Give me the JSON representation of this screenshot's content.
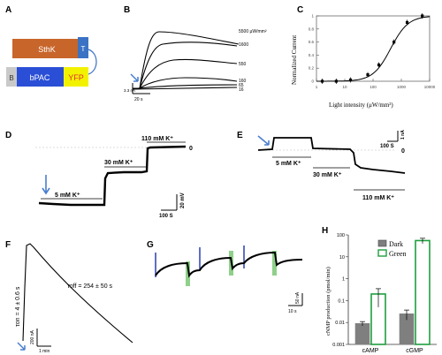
{
  "panels": {
    "A": {
      "label": "A",
      "construct": {
        "sthk": "SthK",
        "t": "T",
        "cap": "B",
        "bpac": "bPAC",
        "yfp": "YFP"
      },
      "colors": {
        "sthk": "#c8652a",
        "t": "#3b73c4",
        "cap": "#c9c9c9",
        "bpac": "#2a4fd6",
        "yfp": "#f2f200"
      }
    },
    "B": {
      "label": "B",
      "trace_labels": [
        "5500 μW/mm²",
        "1600",
        "550",
        "160",
        "65",
        "16"
      ],
      "scale_y": "3.3 nA",
      "scale_x": "20 s"
    },
    "C": {
      "label": "C",
      "ylabel": "Normalized Current",
      "xlabel": "Light intensity (μW/mm²)",
      "xticks": [
        "1",
        "10",
        "100",
        "1000",
        "10000"
      ],
      "yticks": [
        "0",
        "0.2",
        "0.4",
        "0.6",
        "0.8",
        "1"
      ]
    },
    "D": {
      "label": "D",
      "annotations": [
        "5 mM K⁺",
        "30 mM K⁺",
        "110 mM K⁺"
      ],
      "zero": "0",
      "scale_y": "20 mV",
      "scale_x": "100 S"
    },
    "E": {
      "label": "E",
      "annotations": [
        "5 mM K⁺",
        "30 mM K⁺",
        "110 mM K⁺"
      ],
      "zero": "0",
      "scale_y": "1 nA",
      "scale_x": "100 S"
    },
    "F": {
      "label": "F",
      "tau_on": "τon = 4 ± 0.6 s",
      "tau_off": "τoff = 254 ± 50 s",
      "scale_y": "200 nA",
      "scale_x": "1 min"
    },
    "G": {
      "label": "G",
      "scale_y": "50 nA",
      "scale_x": "10 s"
    },
    "H": {
      "label": "H",
      "ylabel": "cNMP production (pmol/min)",
      "legend": [
        "Dark",
        "Green"
      ],
      "categories": [
        "cAMP",
        "cGMP"
      ],
      "yticks": [
        "0.001",
        "0.01",
        "0.1",
        "1",
        "10",
        "100"
      ]
    }
  },
  "chart_data": [
    {
      "type": "scatter",
      "panel": "C",
      "xlabel": "Light intensity (μW/mm²)",
      "ylabel": "Normalized Current",
      "xscale": "log",
      "xlim": [
        1,
        10000
      ],
      "ylim": [
        0,
        1
      ],
      "x": [
        1.6,
        5,
        16,
        65,
        160,
        550,
        1600,
        5500
      ],
      "y": [
        0.0,
        0.0,
        0.02,
        0.1,
        0.25,
        0.6,
        0.9,
        1.0
      ],
      "fit_line": true
    },
    {
      "type": "bar",
      "panel": "H",
      "categories": [
        "cAMP",
        "cGMP"
      ],
      "yscale": "log",
      "ylim": [
        0.001,
        100
      ],
      "ylabel": "cNMP production (pmol/min)",
      "series": [
        {
          "name": "Dark",
          "values": [
            0.009,
            0.025
          ],
          "errors": [
            0.002,
            0.012
          ],
          "color": "#7f7f7f"
        },
        {
          "name": "Green",
          "values": [
            0.2,
            55
          ],
          "errors": [
            0.15,
            15
          ],
          "color": "#1e9e3e"
        }
      ]
    }
  ]
}
